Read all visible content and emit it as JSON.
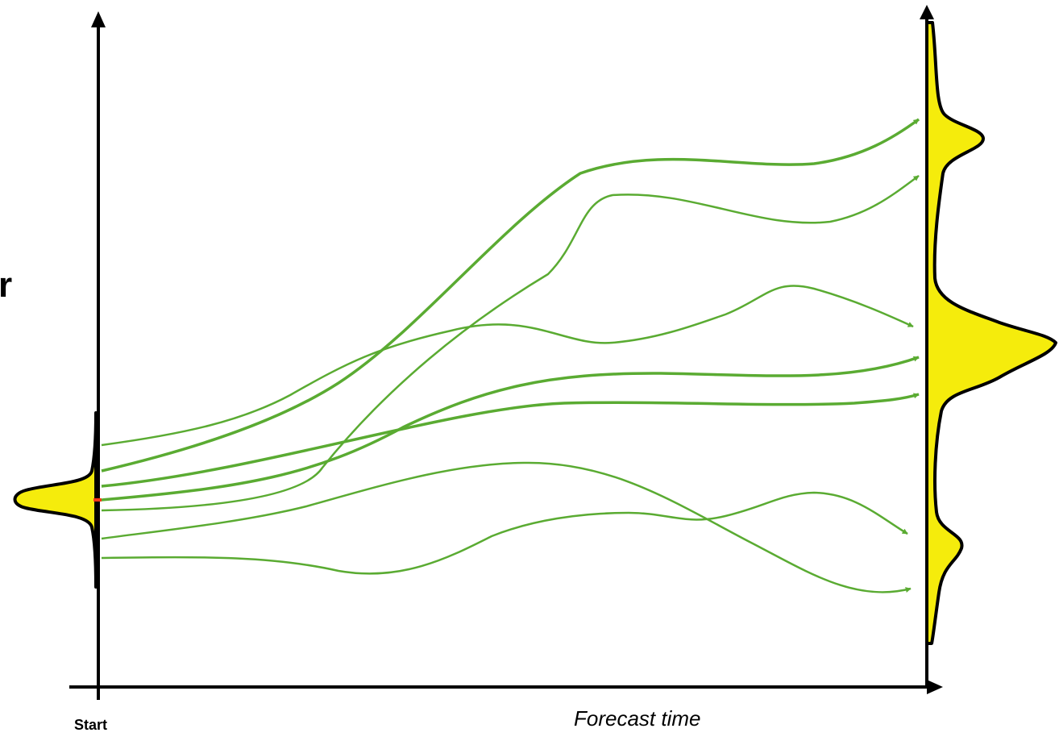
{
  "labels": {
    "start": "Start",
    "forecast_time": "Forecast time",
    "clipped_fragment": "r"
  },
  "colors": {
    "trajectory": "#5aab32",
    "pdf_fill": "#f5ec0c",
    "pdf_outline": "#000000",
    "axis": "#000000",
    "initial_marker": "#ff3a1a"
  },
  "trajectory_count": 8,
  "icons": {
    "axis_arrowhead": "triangle-arrowhead",
    "trajectory_arrowhead": "small-triangle-arrowhead"
  }
}
